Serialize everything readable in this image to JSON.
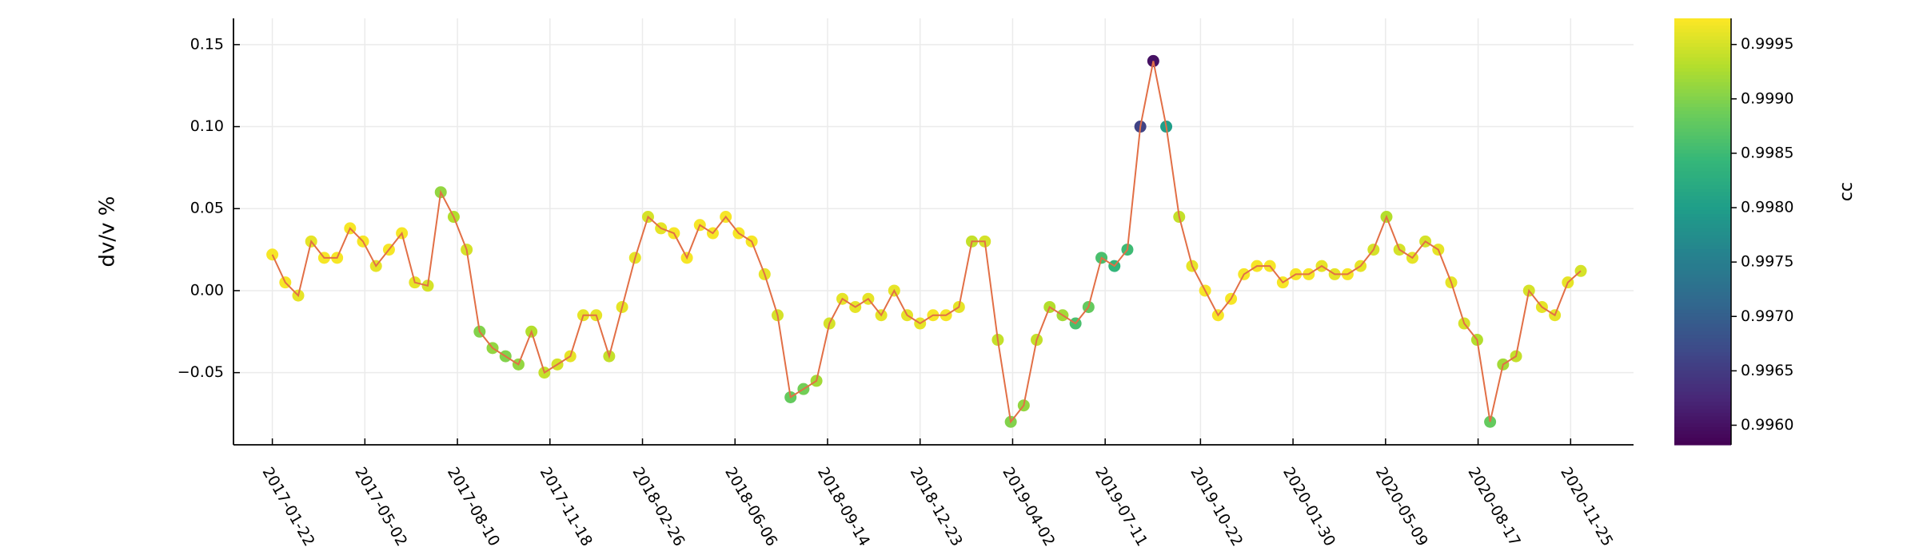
{
  "chart_data": {
    "type": "scatter",
    "ylabel": "dv/v %",
    "colorbar_label": "cc",
    "x": [
      "2017-01-22",
      "2017-02-05",
      "2017-02-19",
      "2017-03-05",
      "2017-03-19",
      "2017-04-02",
      "2017-04-16",
      "2017-04-30",
      "2017-05-14",
      "2017-05-28",
      "2017-06-11",
      "2017-06-25",
      "2017-07-09",
      "2017-07-23",
      "2017-08-06",
      "2017-08-20",
      "2017-09-03",
      "2017-09-17",
      "2017-10-01",
      "2017-10-15",
      "2017-10-29",
      "2017-11-12",
      "2017-11-26",
      "2017-12-10",
      "2017-12-24",
      "2018-01-07",
      "2018-01-21",
      "2018-02-04",
      "2018-02-18",
      "2018-03-04",
      "2018-03-18",
      "2018-04-01",
      "2018-04-15",
      "2018-04-29",
      "2018-05-13",
      "2018-05-27",
      "2018-06-10",
      "2018-06-24",
      "2018-07-08",
      "2018-07-22",
      "2018-08-05",
      "2018-08-19",
      "2018-09-02",
      "2018-09-16",
      "2018-09-30",
      "2018-10-14",
      "2018-10-28",
      "2018-11-11",
      "2018-11-25",
      "2018-12-09",
      "2018-12-23",
      "2019-01-06",
      "2019-01-20",
      "2019-02-03",
      "2019-02-17",
      "2019-03-03",
      "2019-03-17",
      "2019-03-31",
      "2019-04-14",
      "2019-04-28",
      "2019-05-12",
      "2019-05-26",
      "2019-06-09",
      "2019-06-23",
      "2019-07-07",
      "2019-07-21",
      "2019-08-04",
      "2019-08-18",
      "2019-09-01",
      "2019-09-15",
      "2019-09-29",
      "2019-10-13",
      "2019-10-27",
      "2019-11-10",
      "2019-11-24",
      "2019-12-08",
      "2019-12-22",
      "2020-01-05",
      "2020-01-19",
      "2020-02-02",
      "2020-02-16",
      "2020-03-01",
      "2020-03-15",
      "2020-03-29",
      "2020-04-12",
      "2020-04-26",
      "2020-05-10",
      "2020-05-24",
      "2020-06-07",
      "2020-06-21",
      "2020-07-05",
      "2020-07-19",
      "2020-08-02",
      "2020-08-16",
      "2020-08-30",
      "2020-09-13",
      "2020-09-27",
      "2020-10-11",
      "2020-10-25",
      "2020-11-08",
      "2020-11-22",
      "2020-12-06"
    ],
    "values": [
      0.022,
      0.005,
      -0.003,
      0.03,
      0.02,
      0.02,
      0.038,
      0.03,
      0.015,
      0.025,
      0.035,
      0.005,
      0.003,
      0.06,
      0.045,
      0.025,
      -0.025,
      -0.035,
      -0.04,
      -0.045,
      -0.025,
      -0.05,
      -0.045,
      -0.04,
      -0.015,
      -0.015,
      -0.04,
      -0.01,
      0.02,
      0.045,
      0.038,
      0.035,
      0.02,
      0.04,
      0.035,
      0.045,
      0.035,
      0.03,
      0.01,
      -0.015,
      -0.065,
      -0.06,
      -0.055,
      -0.02,
      -0.005,
      -0.01,
      -0.005,
      -0.015,
      0.0,
      -0.015,
      -0.02,
      -0.015,
      -0.015,
      -0.01,
      0.03,
      0.03,
      -0.03,
      -0.08,
      -0.07,
      -0.03,
      -0.01,
      -0.015,
      -0.02,
      -0.01,
      0.02,
      0.015,
      0.025,
      0.1,
      0.14,
      0.1,
      0.045,
      0.015,
      0.0,
      -0.015,
      -0.005,
      0.01,
      0.015,
      0.015,
      0.005,
      0.01,
      0.01,
      0.015,
      0.01,
      0.01,
      0.015,
      0.025,
      0.045,
      0.025,
      0.02,
      0.03,
      0.025,
      0.005,
      -0.02,
      -0.03,
      -0.08,
      -0.045,
      -0.04,
      0.0,
      -0.01,
      -0.015,
      0.005,
      0.012
    ],
    "cc": [
      0.9997,
      0.9997,
      0.9996,
      0.9996,
      0.9997,
      0.9997,
      0.9997,
      0.9997,
      0.9996,
      0.9997,
      0.9997,
      0.9996,
      0.9995,
      0.9991,
      0.9993,
      0.9995,
      0.999,
      0.9991,
      0.999,
      0.9991,
      0.9993,
      0.9994,
      0.9995,
      0.9996,
      0.9996,
      0.9996,
      0.9994,
      0.9996,
      0.9996,
      0.9995,
      0.9996,
      0.9997,
      0.9997,
      0.9997,
      0.9997,
      0.9997,
      0.9997,
      0.9997,
      0.9996,
      0.9995,
      0.9988,
      0.9989,
      0.9992,
      0.9995,
      0.9996,
      0.9996,
      0.9996,
      0.9996,
      0.9996,
      0.9996,
      0.9996,
      0.9997,
      0.9997,
      0.9996,
      0.9994,
      0.9995,
      0.9994,
      0.999,
      0.9991,
      0.9994,
      0.9993,
      0.9992,
      0.9986,
      0.9988,
      0.9986,
      0.9984,
      0.9985,
      0.9966,
      0.996,
      0.998,
      0.9994,
      0.9996,
      0.9997,
      0.9997,
      0.9997,
      0.9997,
      0.9997,
      0.9997,
      0.9997,
      0.9997,
      0.9997,
      0.9996,
      0.9996,
      0.9997,
      0.9996,
      0.9995,
      0.9993,
      0.9995,
      0.9996,
      0.9995,
      0.9996,
      0.9996,
      0.9995,
      0.9993,
      0.9988,
      0.9992,
      0.9994,
      0.9995,
      0.9996,
      0.9996,
      0.9996,
      0.9995
    ],
    "line_color": "#e26f46",
    "colormap": "viridis",
    "clim": [
      0.99582,
      0.99974
    ],
    "cticks": [
      {
        "value": 0.996,
        "label": "0.9960"
      },
      0.9965,
      {
        "value": 0.997,
        "label": "0.9970"
      },
      0.9975,
      {
        "value": 0.998,
        "label": "0.9980"
      },
      0.9985,
      {
        "value": 0.999,
        "label": "0.9990"
      },
      0.9995
    ],
    "xlim": [
      "2016-12-11",
      "2021-02-01"
    ],
    "xticks": [
      "2017-01-22",
      "2017-05-02",
      "2017-08-10",
      "2017-11-18",
      "2018-02-26",
      "2018-06-06",
      "2018-09-14",
      "2018-12-23",
      "2019-04-02",
      "2019-07-11",
      "2019-10-22",
      "2020-01-30",
      "2020-05-09",
      "2020-08-17",
      "2020-11-25"
    ],
    "ylim": [
      -0.094,
      0.166
    ],
    "yticks": [
      {
        "value": -0.05,
        "label": "−0.05"
      },
      {
        "value": 0,
        "label": "0.00"
      },
      0.05,
      {
        "value": 0.1,
        "label": "0.10"
      },
      0.15
    ],
    "grid": true
  }
}
